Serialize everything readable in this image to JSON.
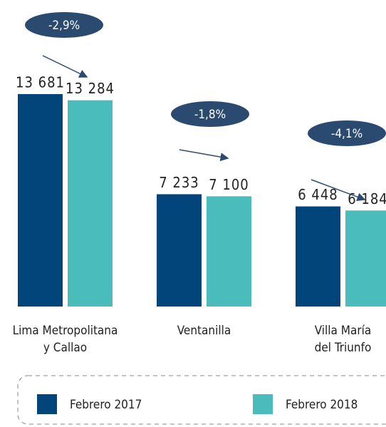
{
  "chart_data": {
    "type": "bar",
    "categories": [
      "Lima Metropolitana\ny Callao",
      "Ventanilla",
      "Villa María\ndel Triunfo"
    ],
    "series": [
      {
        "name": "Febrero 2017",
        "color": "#02457a",
        "values": [
          13681,
          7233,
          6448
        ],
        "value_labels": [
          "13 681",
          "7 233",
          "6 448"
        ]
      },
      {
        "name": "Febrero 2018",
        "color": "#4bbcbc",
        "values": [
          13284,
          7100,
          6184
        ],
        "value_labels": [
          "13 284",
          "7 100",
          "6 184"
        ]
      }
    ],
    "annotations": [
      "-2,9%",
      "-1,8%",
      "-4,1%"
    ]
  }
}
